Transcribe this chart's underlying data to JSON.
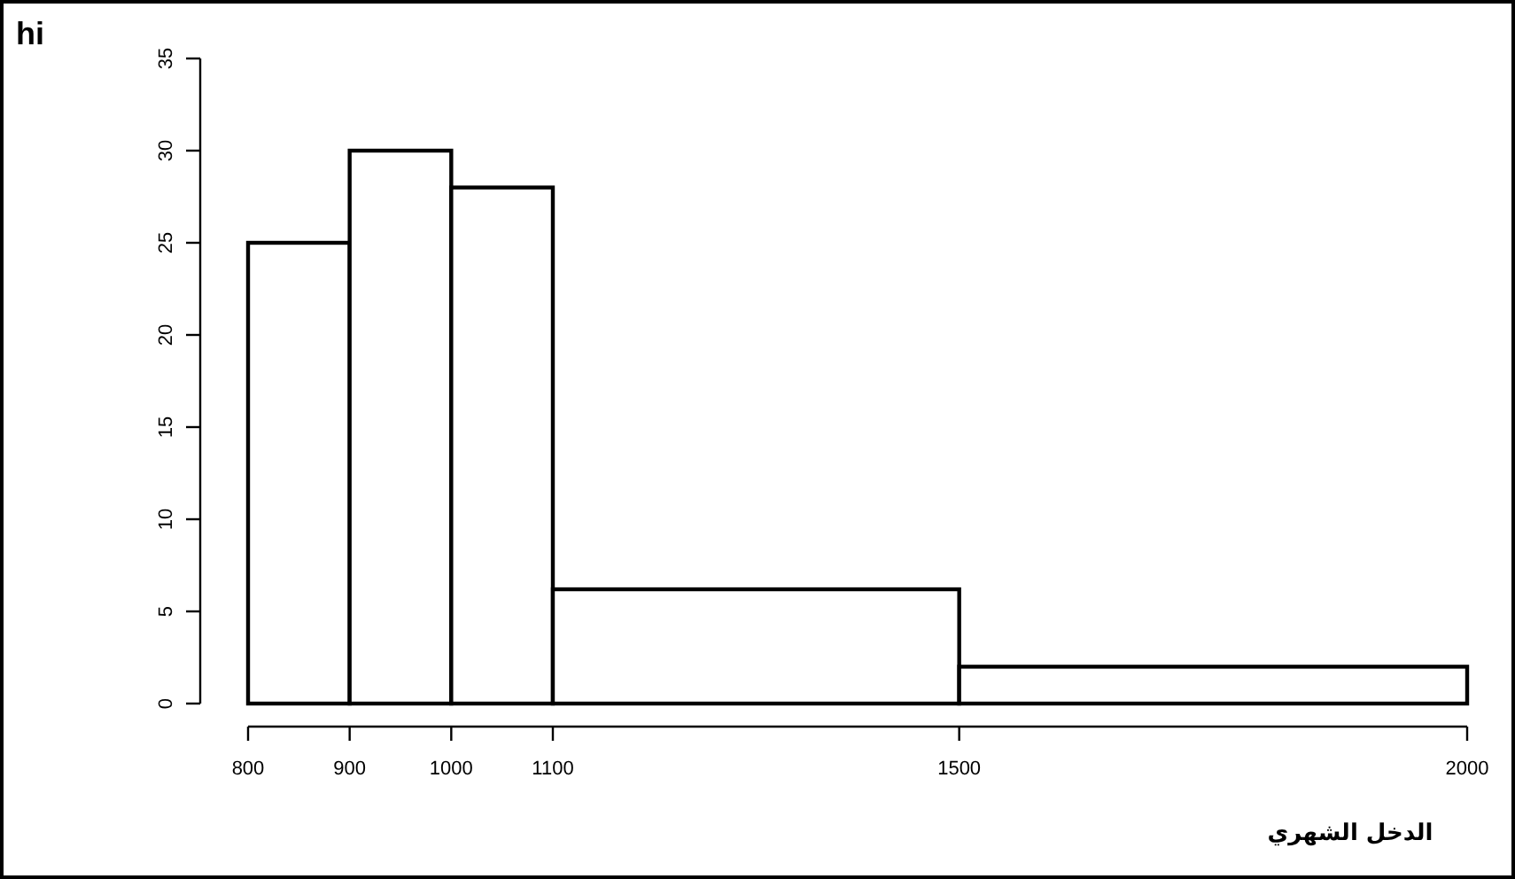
{
  "chart_data": {
    "type": "histogram",
    "xlabel": "الدخل الشهري",
    "annotations": [
      "hi"
    ],
    "bins": [
      800,
      900,
      1000,
      1100,
      1500,
      2000
    ],
    "values": [
      25,
      30,
      28,
      6.2,
      2
    ],
    "color": "#ffffff",
    "xlim": [
      800,
      2000
    ],
    "xticks": [
      800,
      900,
      1000,
      1100,
      1500,
      2000
    ],
    "ylim": [
      0,
      35
    ],
    "yticks": [
      0,
      5,
      10,
      15,
      20,
      25,
      30,
      35
    ],
    "grid": false
  }
}
